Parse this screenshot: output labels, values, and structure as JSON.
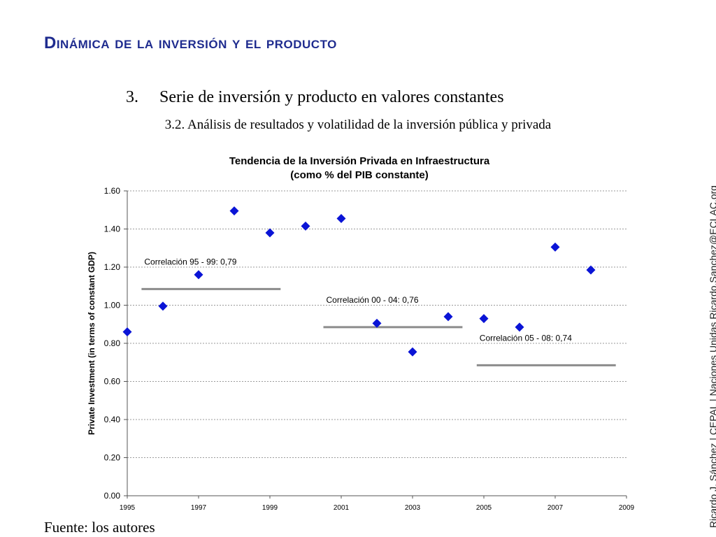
{
  "slide": {
    "title": "Dinámica de la inversión y el producto",
    "section_number": "3.",
    "section_title": "Serie de inversión y producto en valores constantes",
    "subheading": "3.2. Análisis de resultados y volatilidad de la inversión pública y privada",
    "source": "Fuente: los autores",
    "side_credit": "Ricardo J. Sánchez | CEPAL | Naciones Unidas   Ricardo.Sanchez@ECLAC.org"
  },
  "chart_data": {
    "type": "scatter",
    "title_lines": [
      "Tendencia de la Inversión Privada en Infraestructura",
      "(como % del PIB constante)"
    ],
    "xlabel": "",
    "ylabel": "Private Investment (in terms of constant GDP)",
    "xlim": [
      1995,
      2009
    ],
    "ylim": [
      0,
      1.6
    ],
    "x_ticks": [
      "1995",
      "1997",
      "1999",
      "2001",
      "2003",
      "2005",
      "2007",
      "2009"
    ],
    "y_ticks": [
      "0.00",
      "0.20",
      "0.40",
      "0.60",
      "0.80",
      "1.00",
      "1.20",
      "1.40",
      "1.60"
    ],
    "grid": "horizontal-dashed",
    "marker_color": "#0a14d6",
    "points": [
      {
        "x": 1995,
        "y": 0.86
      },
      {
        "x": 1996,
        "y": 0.995
      },
      {
        "x": 1997,
        "y": 1.16
      },
      {
        "x": 1998,
        "y": 1.495
      },
      {
        "x": 1999,
        "y": 1.38
      },
      {
        "x": 2000,
        "y": 1.415
      },
      {
        "x": 2001,
        "y": 1.455
      },
      {
        "x": 2002,
        "y": 0.905
      },
      {
        "x": 2003,
        "y": 0.755
      },
      {
        "x": 2004,
        "y": 0.94
      },
      {
        "x": 2005,
        "y": 0.93
      },
      {
        "x": 2006,
        "y": 0.885
      },
      {
        "x": 2007,
        "y": 1.305
      },
      {
        "x": 2008,
        "y": 1.185
      }
    ],
    "trend_lines": [
      {
        "label": "Correlación 95 - 99: 0,79",
        "x_start": 1995.4,
        "x_end": 1999.3,
        "y": 1.085,
        "color": "#8c8c8c"
      },
      {
        "label": "Correlación 00 - 04: 0,76",
        "x_start": 2000.5,
        "x_end": 2004.4,
        "y": 0.885,
        "color": "#8c8c8c"
      },
      {
        "label": "Correlación 05 - 08: 0,74",
        "x_start": 2004.8,
        "x_end": 2008.7,
        "y": 0.685,
        "color": "#8c8c8c"
      }
    ]
  }
}
